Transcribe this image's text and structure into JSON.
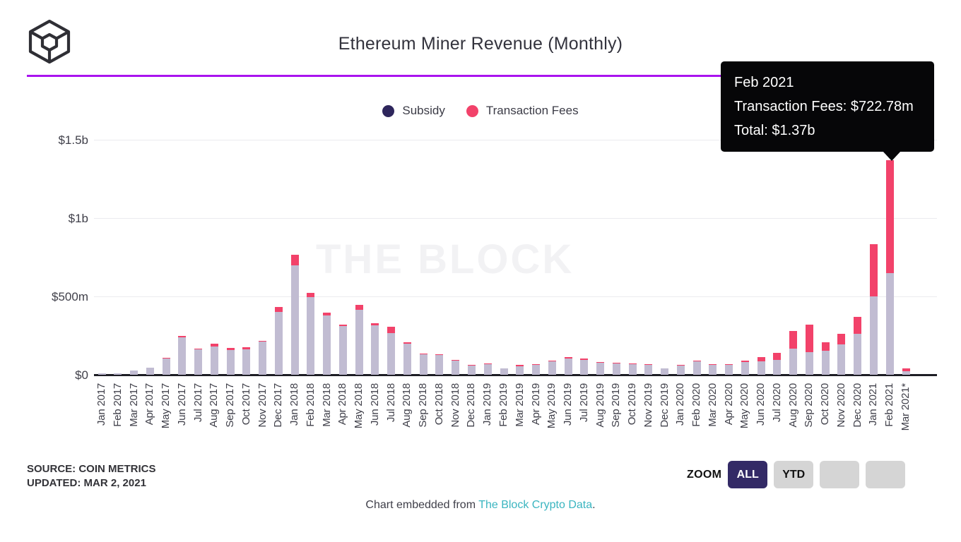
{
  "header": {
    "title": "Ethereum Miner Revenue (Monthly)"
  },
  "legend": [
    {
      "label": "Subsidy",
      "color": "#2e265c"
    },
    {
      "label": "Transaction Fees",
      "color": "#f2426a"
    }
  ],
  "tooltip": {
    "title": "Feb 2021",
    "fees_line": "Transaction Fees: $722.78m",
    "total_line": "Total: $1.37b"
  },
  "watermark": "THE BLOCK",
  "chart_data": {
    "type": "bar",
    "stacked": true,
    "title": "Ethereum Miner Revenue (Monthly)",
    "unit": "USD millions",
    "ylim": [
      0,
      1500
    ],
    "ytick_values": [
      0,
      500,
      1000,
      1500
    ],
    "ytick_labels": [
      "$0",
      "$500m",
      "$1b",
      "$1.5b"
    ],
    "grid": "horizontal",
    "legend_position": "top",
    "categories": [
      "Jan 2017",
      "Feb 2017",
      "Mar 2017",
      "Apr 2017",
      "May 2017",
      "Jun 2017",
      "Jul 2017",
      "Aug 2017",
      "Sep 2017",
      "Oct 2017",
      "Nov 2017",
      "Dec 2017",
      "Jan 2018",
      "Feb 2018",
      "Mar 2018",
      "Apr 2018",
      "May 2018",
      "Jun 2018",
      "Jul 2018",
      "Aug 2018",
      "Sep 2018",
      "Oct 2018",
      "Nov 2018",
      "Dec 2018",
      "Jan 2019",
      "Feb 2019",
      "Mar 2019",
      "Apr 2019",
      "May 2019",
      "Jun 2019",
      "Jul 2019",
      "Aug 2019",
      "Sep 2019",
      "Oct 2019",
      "Nov 2019",
      "Dec 2019",
      "Jan 2020",
      "Feb 2020",
      "Mar 2020",
      "Apr 2020",
      "May 2020",
      "Jun 2020",
      "Jul 2020",
      "Aug 2020",
      "Sep 2020",
      "Oct 2020",
      "Nov 2020",
      "Dec 2020",
      "Jan 2021",
      "Feb 2021",
      "Mar 2021*"
    ],
    "series": [
      {
        "name": "Subsidy",
        "color": "#c1bcd2",
        "values": [
          9,
          10,
          26,
          43,
          105,
          240,
          162,
          178,
          159,
          164,
          210,
          402,
          698,
          495,
          379,
          310,
          416,
          315,
          267,
          198,
          130,
          126,
          91,
          60,
          69,
          39,
          54,
          64,
          86,
          103,
          95,
          78,
          74,
          68,
          64,
          39,
          60,
          86,
          64,
          64,
          81,
          87,
          95,
          165,
          145,
          154,
          195,
          260,
          500,
          647.2,
          22
        ]
      },
      {
        "name": "Transaction Fees",
        "color": "#f2426a",
        "values": [
          0.3,
          0.4,
          1,
          2,
          3,
          8,
          5,
          20,
          12,
          12,
          6,
          30,
          68,
          28,
          18,
          10,
          31,
          14,
          40,
          9,
          5,
          5,
          4,
          3,
          3,
          2,
          9,
          4,
          4,
          10,
          9,
          3,
          3,
          4,
          4,
          2,
          3,
          4,
          4,
          4,
          9,
          26,
          45,
          114,
          175,
          53,
          65,
          108,
          333,
          722.78,
          18
        ]
      }
    ]
  },
  "source": {
    "line1": "SOURCE: COIN METRICS",
    "line2": "UPDATED: MAR 2, 2021"
  },
  "zoom_controls": {
    "label": "ZOOM",
    "buttons": [
      {
        "label": "ALL",
        "active": true
      },
      {
        "label": "YTD",
        "active": false
      },
      {
        "label": "",
        "active": false
      },
      {
        "label": "",
        "active": false
      }
    ]
  },
  "footer": {
    "prefix": "Chart embedded from ",
    "link": "The Block Crypto Data",
    "suffix": "."
  }
}
